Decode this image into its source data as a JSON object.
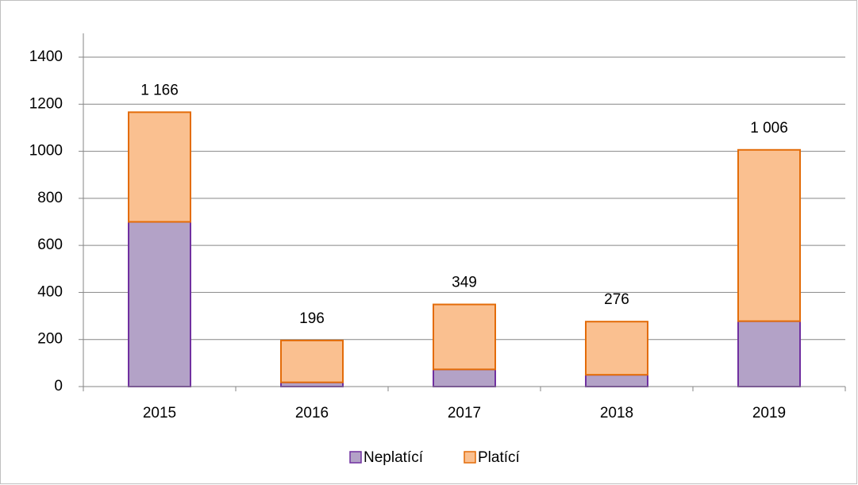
{
  "chart_data": {
    "type": "stacked-bar",
    "categories": [
      "2015",
      "2016",
      "2017",
      "2018",
      "2019"
    ],
    "series": [
      {
        "name": "Neplatící",
        "color": "#b3a2c7",
        "stroke": "#7030a0",
        "values": [
          700,
          18,
          73,
          50,
          278
        ]
      },
      {
        "name": "Platící",
        "color": "#fac090",
        "stroke": "#e36c09",
        "values": [
          466,
          178,
          276,
          226,
          728
        ]
      }
    ],
    "totals": [
      1166,
      196,
      349,
      276,
      1006
    ],
    "total_labels": [
      "1 166",
      "196",
      "349",
      "276",
      "1 006"
    ],
    "ylim": [
      0,
      1400
    ],
    "yticks": [
      0,
      200,
      400,
      600,
      800,
      1000,
      1200,
      1400
    ],
    "grid": true,
    "legend": "bottom"
  }
}
